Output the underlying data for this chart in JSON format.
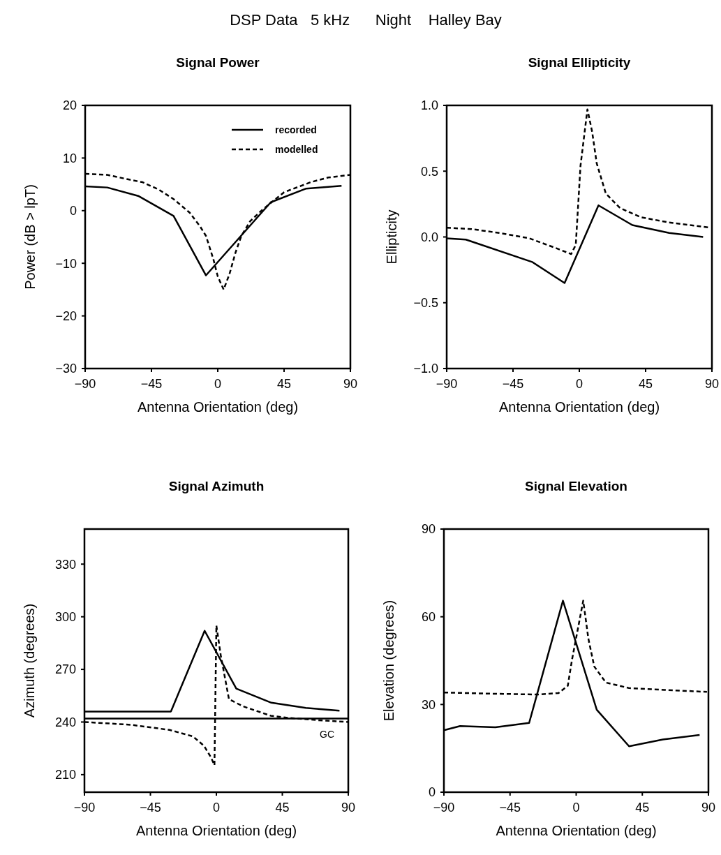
{
  "chart_data": [
    {
      "type": "other",
      "title": "DSP Data   5 kHz      Night    Halley Bay"
    },
    {
      "type": "line",
      "title": "Signal Power",
      "xlabel": "Antenna Orientation (deg)",
      "ylabel": "Power (dB > lpT)",
      "xlim": [
        -90,
        90
      ],
      "xticks": [
        -90,
        -45,
        0,
        45,
        90
      ],
      "ylim": [
        -30,
        20
      ],
      "yticks": [
        -30,
        -20,
        -10,
        0,
        10,
        20
      ],
      "legend": "top right",
      "grid": false,
      "marker": "none",
      "series": [
        {
          "name": "recorded",
          "color": "#000000",
          "line_style": "solid",
          "x": [
            -90,
            -75,
            -54,
            -30,
            -8,
            36,
            60,
            84
          ],
          "values": [
            4.6,
            4.4,
            2.8,
            -1,
            -12.3,
            1.6,
            4.2,
            4.7
          ]
        },
        {
          "name": "modelled",
          "color": "#000000",
          "line_style": "dashed",
          "x": [
            -90,
            -75,
            -60,
            -51,
            -40,
            -30,
            -19,
            -12,
            -8,
            -3,
            0,
            4,
            8,
            12,
            16,
            22,
            30,
            45,
            63,
            75,
            90
          ],
          "values": [
            7,
            6.8,
            5.9,
            5.4,
            4,
            2.2,
            -0.4,
            -3,
            -4.8,
            -9.2,
            -12.5,
            -15,
            -12,
            -8,
            -4.8,
            -2,
            0.1,
            3.5,
            5.4,
            6.3,
            6.8
          ]
        }
      ]
    },
    {
      "type": "line",
      "title": "Signal Ellipticity",
      "xlabel": "Antenna Orientation (deg)",
      "ylabel": "Ellipticity",
      "xlim": [
        -90,
        90
      ],
      "xticks": [
        -90,
        -45,
        0,
        45,
        90
      ],
      "ylim": [
        -1,
        1
      ],
      "yticks": [
        {
          "value": -1,
          "label": "−1.0"
        },
        {
          "value": -0.5,
          "label": "−0.5"
        },
        {
          "value": 0,
          "label": "0.0"
        },
        {
          "value": 0.5,
          "label": "0.5"
        },
        {
          "value": 1,
          "label": "1.0"
        }
      ],
      "legend": false,
      "grid": false,
      "marker": "none",
      "series": [
        {
          "color": "#000000",
          "line_style": "solid",
          "x": [
            -90,
            -77,
            -32,
            -10,
            13,
            36,
            61,
            84
          ],
          "values": [
            -0.01,
            -0.02,
            -0.19,
            -0.35,
            0.24,
            0.09,
            0.03,
            0
          ]
        },
        {
          "color": "#000000",
          "line_style": "dashed",
          "x": [
            -90,
            -73,
            -54,
            -34,
            -17,
            -5.5,
            -2.4,
            0.8,
            5.5,
            8.7,
            11.8,
            18,
            27.6,
            41.8,
            60.8,
            89
          ],
          "values": [
            0.07,
            0.06,
            0.03,
            -0.01,
            -0.08,
            -0.13,
            -0.06,
            0.54,
            0.97,
            0.8,
            0.56,
            0.33,
            0.22,
            0.15,
            0.11,
            0.07
          ]
        }
      ]
    },
    {
      "type": "line",
      "title": "Signal Azimuth",
      "xlabel": "Antenna Orientation (deg)",
      "ylabel": "Azimuth (degrees)",
      "xlim": [
        -90,
        90
      ],
      "xticks": [
        -90,
        -45,
        0,
        45,
        90
      ],
      "ylim": [
        200,
        350
      ],
      "yticks": [
        210,
        240,
        270,
        300,
        330
      ],
      "legend": false,
      "grid": false,
      "marker": "none",
      "ref_lines": [
        {
          "axis": "y",
          "value": 242,
          "label": "GC"
        }
      ],
      "series": [
        {
          "color": "#000000",
          "line_style": "solid",
          "x": [
            -90,
            -31,
            -8,
            13.6,
            37.5,
            61,
            84
          ],
          "values": [
            246,
            246,
            292,
            259,
            251,
            248,
            246.5
          ]
        },
        {
          "color": "#000000",
          "line_style": "dashed",
          "x": [
            -90,
            -58,
            -32,
            -16,
            -8.5,
            -3.7,
            -1.3,
            0,
            3,
            8.6,
            18,
            37,
            49,
            70,
            90
          ],
          "values": [
            240,
            238.4,
            235.5,
            231.8,
            226.5,
            219.9,
            215.4,
            295,
            278,
            253,
            249,
            243.6,
            242.4,
            241,
            240
          ]
        }
      ]
    },
    {
      "type": "line",
      "title": "Signal Elevation",
      "xlabel": "Antenna Orientation (deg)",
      "ylabel": "Elevation (degrees)",
      "xlim": [
        -90,
        90
      ],
      "xticks": [
        -90,
        -45,
        0,
        45,
        90
      ],
      "ylim": [
        0,
        90
      ],
      "yticks": [
        0,
        30,
        60,
        90
      ],
      "legend": false,
      "grid": false,
      "marker": "none",
      "series": [
        {
          "color": "#000000",
          "line_style": "solid",
          "x": [
            -90,
            -79,
            -55,
            -32,
            -9,
            14,
            36,
            59,
            84
          ],
          "values": [
            21.2,
            22.6,
            22.2,
            23.7,
            65.5,
            28.2,
            15.7,
            18,
            19.6
          ]
        },
        {
          "color": "#000000",
          "line_style": "dashed",
          "x": [
            -90,
            -58,
            -26,
            -12,
            -5.7,
            -2.8,
            4.8,
            8.3,
            12.3,
            20.2,
            36,
            60,
            89
          ],
          "values": [
            34.1,
            33.7,
            33.4,
            33.9,
            36.4,
            45.4,
            65.5,
            52.5,
            43,
            37.5,
            35.6,
            35,
            34.3
          ]
        }
      ]
    }
  ]
}
